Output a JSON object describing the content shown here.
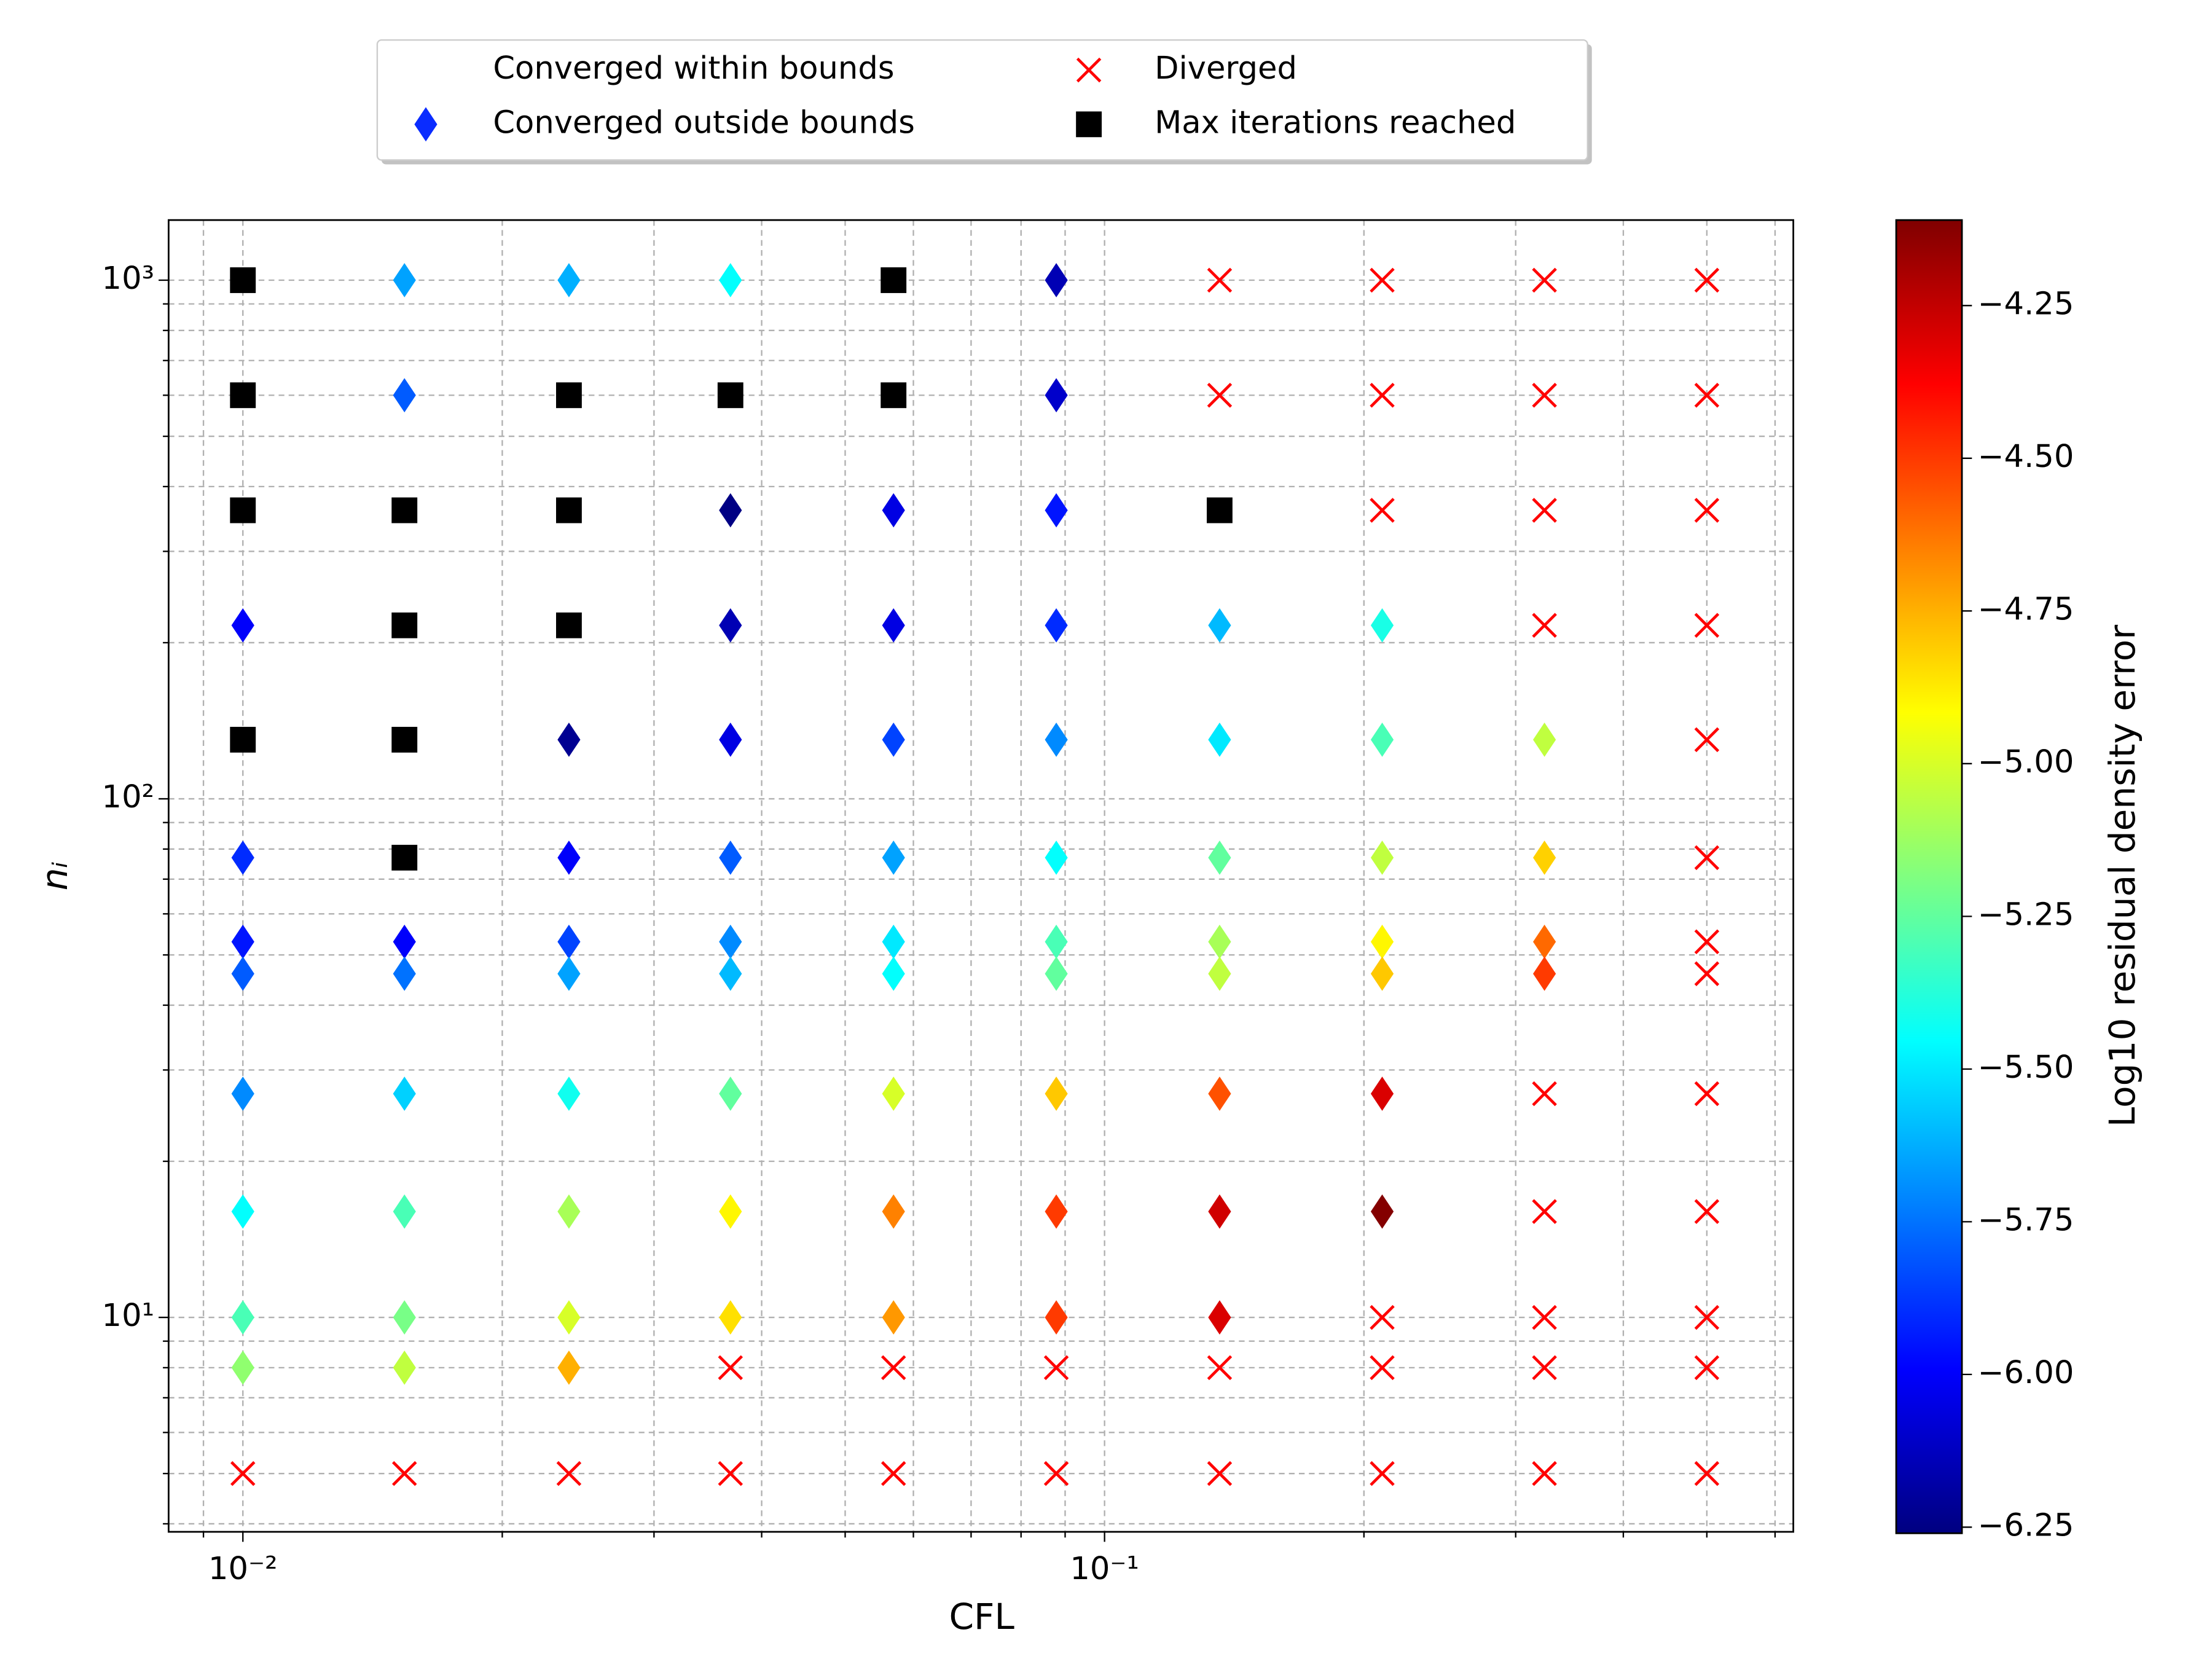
{
  "chart_data": {
    "type": "scatter",
    "xlabel": "CFL",
    "ylabel": "nᵢ",
    "xscale": "log",
    "yscale": "log",
    "grid": true,
    "legend_loc": "upper center",
    "xlim": [
      0.0082,
      0.63
    ],
    "ylim": [
      3.86,
      1306
    ],
    "xticks": [
      {
        "value": 0.01,
        "label": "10⁻²"
      },
      {
        "value": 0.1,
        "label": "10⁻¹"
      }
    ],
    "xminorticks": [
      0.009,
      0.02,
      0.03,
      0.04,
      0.05,
      0.06,
      0.07,
      0.08,
      0.09,
      0.2,
      0.3,
      0.4,
      0.5,
      0.6
    ],
    "yticks": [
      {
        "value": 10,
        "label": "10¹"
      },
      {
        "value": 100,
        "label": "10²"
      },
      {
        "value": 1000,
        "label": "10³"
      }
    ],
    "yminorticks": [
      4,
      5,
      6,
      7,
      8,
      9,
      20,
      30,
      40,
      50,
      60,
      70,
      80,
      90,
      200,
      300,
      400,
      500,
      600,
      700,
      800,
      900
    ],
    "colorbar": {
      "label": "Log10 residual density error",
      "colormap": "jet",
      "clim": [
        -6.26,
        -4.11
      ],
      "ticks": [
        {
          "value": -4.25,
          "label": "−4.25"
        },
        {
          "value": -4.5,
          "label": "−4.50"
        },
        {
          "value": -4.75,
          "label": "−4.75"
        },
        {
          "value": -5.0,
          "label": "−5.00"
        },
        {
          "value": -5.25,
          "label": "−5.25"
        },
        {
          "value": -5.5,
          "label": "−5.50"
        },
        {
          "value": -5.75,
          "label": "−5.75"
        },
        {
          "value": -6.0,
          "label": "−6.00"
        },
        {
          "value": -6.25,
          "label": "−6.25"
        }
      ]
    },
    "series": [
      {
        "name": "Converged within bounds",
        "marker": "none",
        "x": [],
        "y": []
      },
      {
        "name": "Converged outside bounds",
        "marker": "thin_diamond",
        "color": "#0a2cff",
        "color_by": "colorbar",
        "x": [
          0.0154,
          0.0239,
          0.0368,
          0.0879,
          0.0154,
          0.0879,
          0.0368,
          0.0569,
          0.0879,
          0.01,
          0.0368,
          0.0569,
          0.0879,
          0.136,
          0.21,
          0.0239,
          0.0368,
          0.0569,
          0.0879,
          0.136,
          0.21,
          0.324,
          0.01,
          0.0239,
          0.0368,
          0.0569,
          0.0879,
          0.136,
          0.21,
          0.324,
          0.01,
          0.0154,
          0.0239,
          0.0368,
          0.0569,
          0.0879,
          0.136,
          0.21,
          0.324,
          0.01,
          0.0154,
          0.0239,
          0.0368,
          0.0569,
          0.0879,
          0.136,
          0.21,
          0.324,
          0.01,
          0.0154,
          0.0239,
          0.0368,
          0.0569,
          0.0879,
          0.136,
          0.21,
          0.01,
          0.0154,
          0.0239,
          0.0368,
          0.0569,
          0.0879,
          0.136,
          0.21,
          0.01,
          0.0154,
          0.0239,
          0.0368,
          0.0569,
          0.0879,
          0.136,
          0.01,
          0.0154,
          0.0239
        ],
        "y": [
          1000,
          1000,
          1000,
          1000,
          600,
          600,
          360,
          360,
          360,
          216,
          216,
          216,
          216,
          216,
          216,
          130,
          130,
          130,
          130,
          130,
          130,
          130,
          77,
          77,
          77,
          77,
          77,
          77,
          77,
          77,
          53,
          53,
          53,
          53,
          53,
          53,
          53,
          53,
          53,
          46,
          46,
          46,
          46,
          46,
          46,
          46,
          46,
          46,
          27,
          27,
          27,
          27,
          27,
          27,
          27,
          27,
          16,
          16,
          16,
          16,
          16,
          16,
          16,
          16,
          10,
          10,
          10,
          10,
          10,
          10,
          10,
          8,
          8,
          8
        ],
        "values": [
          -5.65,
          -5.62,
          -5.45,
          -6.15,
          -5.8,
          -6.1,
          -6.25,
          -6.05,
          -5.95,
          -6.0,
          -6.15,
          -6.05,
          -5.9,
          -5.6,
          -5.4,
          -6.22,
          -6.05,
          -5.85,
          -5.7,
          -5.5,
          -5.3,
          -5.05,
          -5.9,
          -6.0,
          -5.8,
          -5.65,
          -5.45,
          -5.25,
          -5.05,
          -4.82,
          -5.95,
          -6.0,
          -5.85,
          -5.7,
          -5.5,
          -5.3,
          -5.1,
          -4.9,
          -4.6,
          -5.8,
          -5.75,
          -5.65,
          -5.6,
          -5.45,
          -5.25,
          -5.05,
          -4.8,
          -4.5,
          -5.7,
          -5.55,
          -5.42,
          -5.25,
          -5.0,
          -4.8,
          -4.55,
          -4.3,
          -5.45,
          -5.3,
          -5.1,
          -4.9,
          -4.65,
          -4.5,
          -4.28,
          -4.12,
          -5.3,
          -5.2,
          -5.0,
          -4.85,
          -4.7,
          -4.5,
          -4.3,
          -5.15,
          -5.05,
          -4.75
        ]
      },
      {
        "name": "Diverged",
        "marker": "x",
        "color": "#ff0000",
        "x": [
          0.136,
          0.21,
          0.324,
          0.5,
          0.136,
          0.21,
          0.324,
          0.5,
          0.21,
          0.324,
          0.5,
          0.324,
          0.5,
          0.5,
          0.5,
          0.5,
          0.5,
          0.324,
          0.5,
          0.324,
          0.5,
          0.21,
          0.324,
          0.5,
          0.0368,
          0.0569,
          0.0879,
          0.136,
          0.21,
          0.324,
          0.5,
          0.01,
          0.0154,
          0.0239,
          0.0368,
          0.0569,
          0.0879,
          0.136,
          0.21,
          0.324,
          0.5
        ],
        "y": [
          1000,
          1000,
          1000,
          1000,
          600,
          600,
          600,
          600,
          360,
          360,
          360,
          216,
          216,
          130,
          77,
          53,
          46,
          27,
          27,
          16,
          16,
          10,
          10,
          10,
          8,
          8,
          8,
          8,
          8,
          8,
          8,
          5,
          5,
          5,
          5,
          5,
          5,
          5,
          5,
          5,
          5
        ]
      },
      {
        "name": "Max iterations reached",
        "marker": "square",
        "color": "#000000",
        "x": [
          0.01,
          0.0569,
          0.01,
          0.0239,
          0.0368,
          0.0569,
          0.01,
          0.0154,
          0.0239,
          0.136,
          0.0154,
          0.0239,
          0.01,
          0.0154,
          0.0154
        ],
        "y": [
          1000,
          1000,
          600,
          600,
          600,
          600,
          360,
          360,
          360,
          360,
          216,
          216,
          130,
          130,
          77
        ]
      }
    ]
  }
}
